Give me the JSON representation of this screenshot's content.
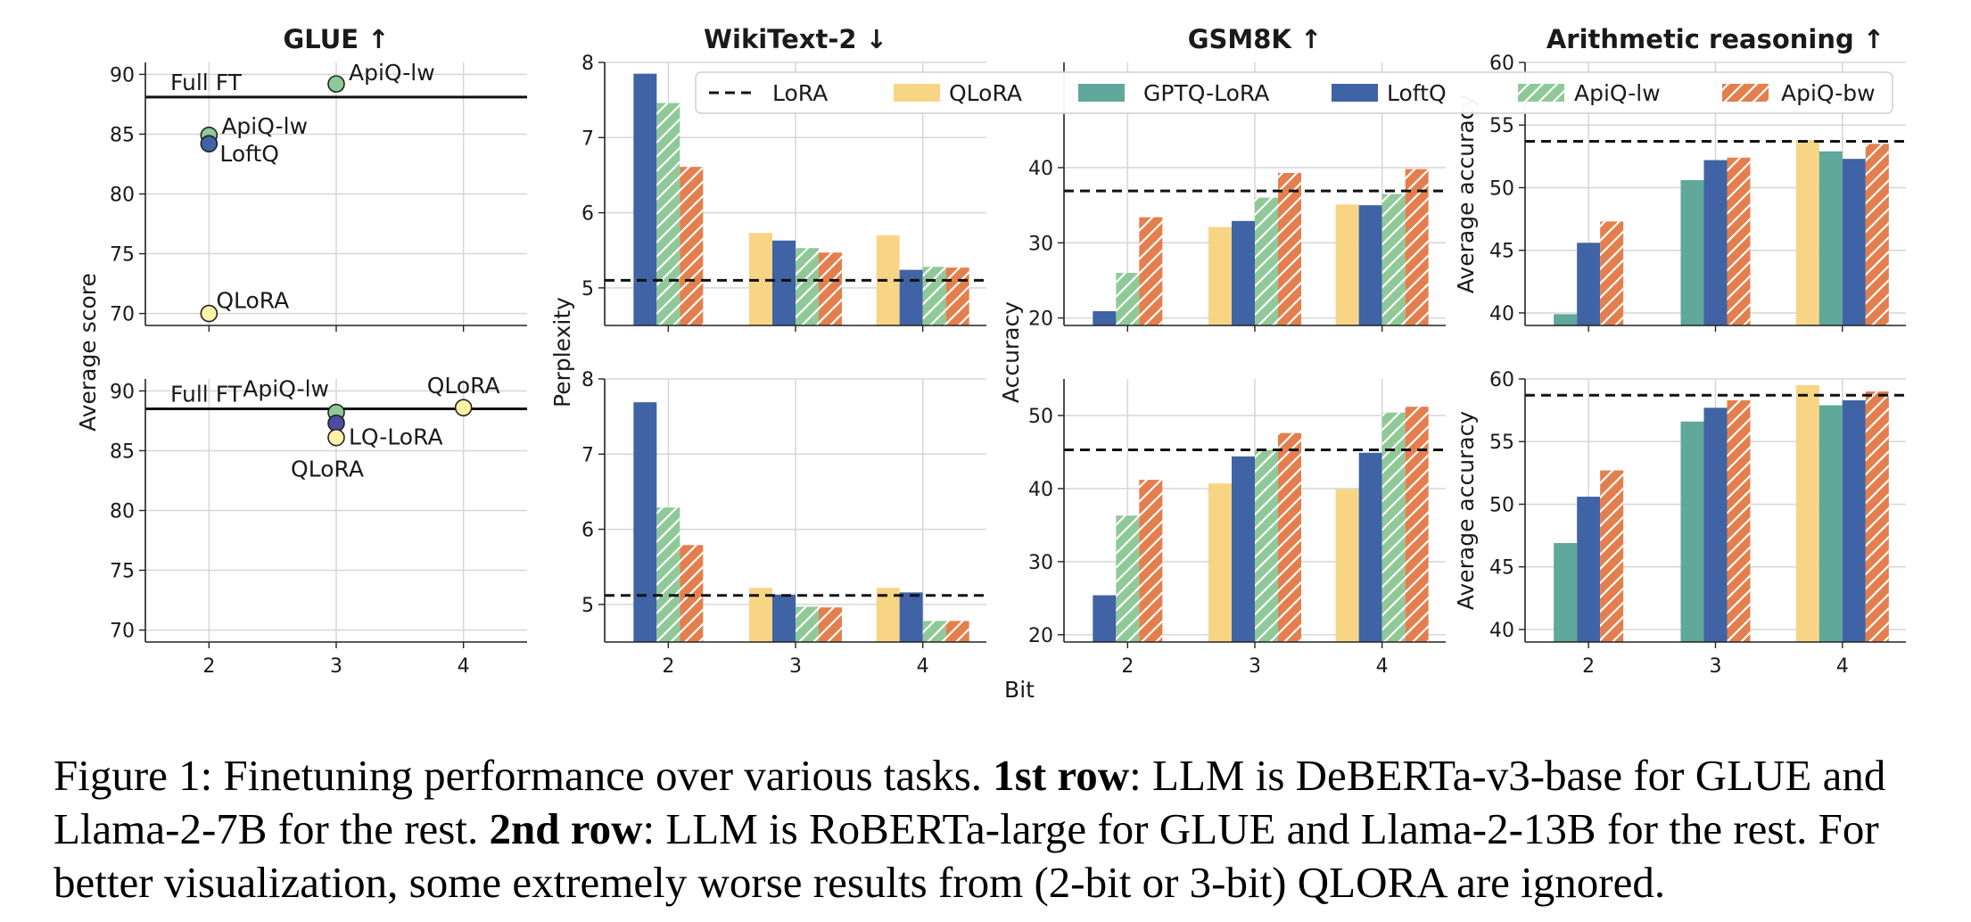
{
  "figure": {
    "xlabel_shared": "Bit",
    "legend": [
      {
        "name": "LoRA",
        "style": "dashed"
      },
      {
        "name": "QLoRA",
        "color": "#f8d585"
      },
      {
        "name": "GPTQ-LoRA",
        "color": "#5fa89b"
      },
      {
        "name": "LoftQ",
        "color": "#4063a5"
      },
      {
        "name": "ApiQ-lw",
        "color": "#8fc998",
        "hatch": true
      },
      {
        "name": "ApiQ-bw",
        "color": "#e47f4d",
        "hatch": true
      }
    ]
  },
  "chart_data": [
    {
      "id": "glue-row1",
      "type": "scatter",
      "title": "GLUE ↑",
      "ylabel": "Average score",
      "x_ticks": [
        2,
        3,
        4
      ],
      "xlim": [
        1.5,
        4.5
      ],
      "ylim": [
        69,
        91
      ],
      "y_ticks": [
        70,
        75,
        80,
        85,
        90
      ],
      "reference": {
        "label": "Full FT",
        "value": 88.1
      },
      "points": [
        {
          "name": "ApiQ-lw",
          "x": 3,
          "y": 89.2,
          "color": "#8fc998"
        },
        {
          "name": "ApiQ-lw",
          "x": 2,
          "y": 84.9,
          "color": "#8fc998"
        },
        {
          "name": "LoftQ",
          "x": 2,
          "y": 84.2,
          "color": "#4063a5"
        },
        {
          "name": "QLoRA",
          "x": 2,
          "y": 70.0,
          "color": "#fbf3a6"
        }
      ]
    },
    {
      "id": "glue-row2",
      "type": "scatter",
      "title": "",
      "ylabel": "",
      "x_ticks": [
        2,
        3,
        4
      ],
      "xlim": [
        1.5,
        4.5
      ],
      "ylim": [
        69,
        91
      ],
      "y_ticks": [
        70,
        75,
        80,
        85,
        90
      ],
      "reference": {
        "label": "Full FT",
        "value": 88.5
      },
      "points": [
        {
          "name": "ApiQ-lw",
          "x": 3,
          "y": 88.2,
          "color": "#8fc998"
        },
        {
          "name": "LQ-LoRA",
          "x": 3,
          "y": 87.3,
          "color": "#4a4ea0"
        },
        {
          "name": "QLoRA",
          "x": 3,
          "y": 86.1,
          "color": "#fbf3a6"
        },
        {
          "name": "QLoRA",
          "x": 4,
          "y": 88.6,
          "color": "#fbf3a6"
        }
      ]
    },
    {
      "id": "wikitext-row1",
      "type": "bar",
      "title": "WikiText-2 ↓",
      "ylabel": "Perplexity",
      "categories": [
        "2",
        "3",
        "4"
      ],
      "ylim": [
        4.5,
        8
      ],
      "y_ticks": [
        5,
        6,
        7,
        8
      ],
      "lora": 5.1,
      "series": [
        {
          "name": "QLoRA",
          "values": [
            null,
            5.73,
            5.7
          ]
        },
        {
          "name": "GPTQ-LoRA",
          "values": [
            null,
            null,
            null
          ]
        },
        {
          "name": "LoftQ",
          "values": [
            7.85,
            5.63,
            5.24
          ]
        },
        {
          "name": "ApiQ-lw",
          "values": [
            7.46,
            5.53,
            5.28
          ]
        },
        {
          "name": "ApiQ-bw",
          "values": [
            6.61,
            5.47,
            5.27
          ]
        }
      ]
    },
    {
      "id": "wikitext-row2",
      "type": "bar",
      "title": "",
      "ylabel": "",
      "categories": [
        "2",
        "3",
        "4"
      ],
      "ylim": [
        4.5,
        8
      ],
      "y_ticks": [
        5,
        6,
        7,
        8
      ],
      "lora": 5.12,
      "series": [
        {
          "name": "QLoRA",
          "values": [
            null,
            5.22,
            5.22
          ]
        },
        {
          "name": "GPTQ-LoRA",
          "values": [
            null,
            null,
            null
          ]
        },
        {
          "name": "LoftQ",
          "values": [
            7.69,
            5.13,
            5.16
          ]
        },
        {
          "name": "ApiQ-lw",
          "values": [
            6.29,
            4.97,
            4.78
          ]
        },
        {
          "name": "ApiQ-bw",
          "values": [
            5.79,
            4.96,
            4.78
          ]
        }
      ]
    },
    {
      "id": "gsm8k-row1",
      "type": "bar",
      "title": "GSM8K ↑",
      "ylabel": "Accuracy",
      "categories": [
        "2",
        "3",
        "4"
      ],
      "ylim": [
        19,
        54
      ],
      "y_ticks": [
        20,
        30,
        40
      ],
      "lora": 36.9,
      "series": [
        {
          "name": "QLoRA",
          "values": [
            null,
            32.1,
            35.1
          ]
        },
        {
          "name": "GPTQ-LoRA",
          "values": [
            null,
            null,
            null
          ]
        },
        {
          "name": "LoftQ",
          "values": [
            20.9,
            32.9,
            35.0
          ]
        },
        {
          "name": "ApiQ-lw",
          "values": [
            26.0,
            36.0,
            36.5
          ]
        },
        {
          "name": "ApiQ-bw",
          "values": [
            33.4,
            39.3,
            39.8
          ]
        }
      ]
    },
    {
      "id": "gsm8k-row2",
      "type": "bar",
      "title": "",
      "ylabel": "",
      "categories": [
        "2",
        "3",
        "4"
      ],
      "ylim": [
        19,
        55
      ],
      "y_ticks": [
        20,
        30,
        40,
        50
      ],
      "lora": 45.3,
      "series": [
        {
          "name": "QLoRA",
          "values": [
            null,
            40.7,
            39.9
          ]
        },
        {
          "name": "GPTQ-LoRA",
          "values": [
            null,
            null,
            null
          ]
        },
        {
          "name": "LoftQ",
          "values": [
            25.4,
            44.4,
            44.9
          ]
        },
        {
          "name": "ApiQ-lw",
          "values": [
            36.3,
            45.3,
            50.4
          ]
        },
        {
          "name": "ApiQ-bw",
          "values": [
            41.2,
            47.6,
            51.2
          ]
        }
      ]
    },
    {
      "id": "arith-row1",
      "type": "bar",
      "title": "Arithmetic reasoning ↑",
      "ylabel": "Average accuracy",
      "categories": [
        "2",
        "3",
        "4"
      ],
      "ylim": [
        39,
        60
      ],
      "y_ticks": [
        40,
        45,
        50,
        55,
        60
      ],
      "lora": 53.7,
      "series": [
        {
          "name": "QLoRA",
          "values": [
            null,
            null,
            53.8
          ]
        },
        {
          "name": "GPTQ-LoRA",
          "values": [
            39.9,
            50.6,
            52.9
          ]
        },
        {
          "name": "LoftQ",
          "values": [
            45.6,
            52.2,
            52.3
          ]
        },
        {
          "name": "ApiQ-lw",
          "values": [
            null,
            null,
            null
          ]
        },
        {
          "name": "ApiQ-bw",
          "values": [
            47.3,
            52.4,
            53.5
          ]
        }
      ]
    },
    {
      "id": "arith-row2",
      "type": "bar",
      "title": "",
      "ylabel": "Average accuracy",
      "categories": [
        "2",
        "3",
        "4"
      ],
      "ylim": [
        39,
        60
      ],
      "y_ticks": [
        40,
        45,
        50,
        55,
        60
      ],
      "lora": 58.7,
      "series": [
        {
          "name": "QLoRA",
          "values": [
            null,
            null,
            59.5
          ]
        },
        {
          "name": "GPTQ-LoRA",
          "values": [
            46.9,
            56.6,
            57.9
          ]
        },
        {
          "name": "LoftQ",
          "values": [
            50.6,
            57.7,
            58.3
          ]
        },
        {
          "name": "ApiQ-lw",
          "values": [
            null,
            null,
            null
          ]
        },
        {
          "name": "ApiQ-bw",
          "values": [
            52.7,
            58.3,
            59.0
          ]
        }
      ]
    }
  ],
  "caption": {
    "prefix": "Figure 1: Finetuning performance over various tasks.",
    "row1_label": "1st row",
    "row1_text": ": LLM is DeBERTa-v3-base for GLUE and Llama-2-7B for the rest.",
    "row2_label": "2nd row",
    "row2_text": ": LLM is RoBERTa-large for GLUE and Llama-2-13B for the rest. For better visualization, some extremely worse results from (2-bit or 3-bit) QLORA are ignored."
  }
}
